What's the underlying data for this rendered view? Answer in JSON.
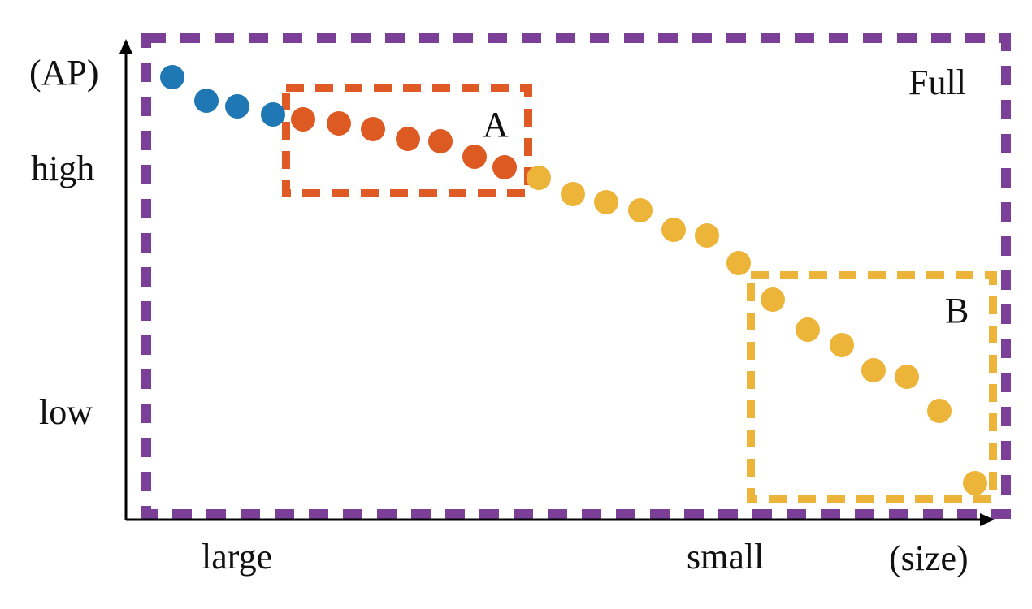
{
  "axis": {
    "y_label": "(AP)",
    "x_label": "(size)",
    "y_high": "high",
    "y_low": "low",
    "x_large": "large",
    "x_small": "small"
  },
  "regions": {
    "full": {
      "label": "Full",
      "color": "#7B3F98"
    },
    "a": {
      "label": "A",
      "color": "#E05A25"
    },
    "b": {
      "label": "B",
      "color": "#EDB43A"
    }
  },
  "dot_colors": {
    "blue": "#1F77B4",
    "orange": "#DD5A23",
    "yellow": "#EDB43A"
  }
}
